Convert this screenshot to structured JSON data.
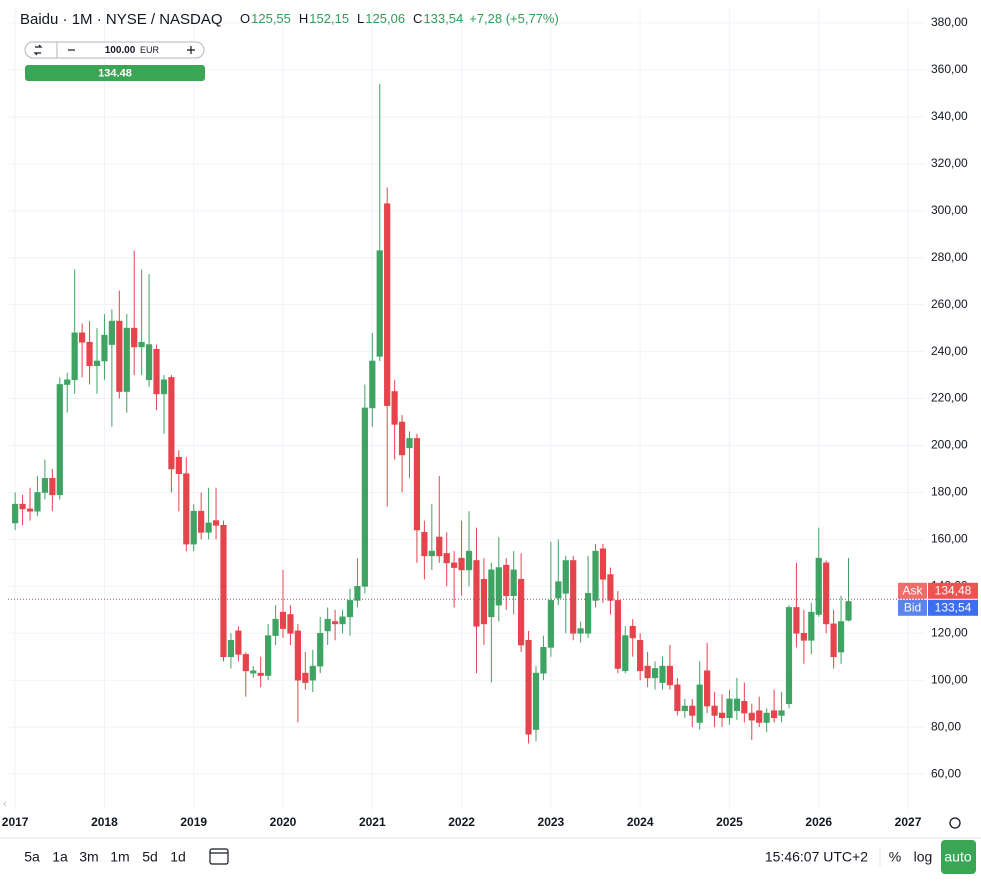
{
  "chart_data": {
    "type": "candlestick",
    "title": "Baidu · 1M · NYSE / NASDAQ",
    "last_labels": [
      {
        "key": "O",
        "label": "125,55"
      },
      {
        "key": "H",
        "label": "152,15"
      },
      {
        "key": "L",
        "label": "125,06"
      },
      {
        "key": "C",
        "label": "133,54"
      }
    ],
    "change_label": "+7,28 (+5,77%)",
    "up_color": "#3fa463",
    "down_color": "#e5444c",
    "x": [
      "2017-01",
      "2017-02",
      "2017-03",
      "2017-04",
      "2017-05",
      "2017-06",
      "2017-07",
      "2017-08",
      "2017-09",
      "2017-10",
      "2017-11",
      "2017-12",
      "2018-01",
      "2018-02",
      "2018-03",
      "2018-04",
      "2018-05",
      "2018-06",
      "2018-07",
      "2018-08",
      "2018-09",
      "2018-10",
      "2018-11",
      "2018-12",
      "2019-01",
      "2019-02",
      "2019-03",
      "2019-04",
      "2019-05",
      "2019-06",
      "2019-07",
      "2019-08",
      "2019-09",
      "2019-10",
      "2019-11",
      "2019-12",
      "2020-01",
      "2020-02",
      "2020-03",
      "2020-04",
      "2020-05",
      "2020-06",
      "2020-07",
      "2020-08",
      "2020-09",
      "2020-10",
      "2020-11",
      "2020-12",
      "2021-01",
      "2021-02",
      "2021-03",
      "2021-04",
      "2021-05",
      "2021-06",
      "2021-07",
      "2021-08",
      "2021-09",
      "2021-10",
      "2021-11",
      "2021-12",
      "2022-01",
      "2022-02",
      "2022-03",
      "2022-04",
      "2022-05",
      "2022-06",
      "2022-07",
      "2022-08",
      "2022-09",
      "2022-10",
      "2022-11",
      "2022-12",
      "2023-01",
      "2023-02",
      "2023-03",
      "2023-04",
      "2023-05",
      "2023-06",
      "2023-07",
      "2023-08",
      "2023-09",
      "2023-10",
      "2023-11",
      "2023-12",
      "2024-01",
      "2024-02",
      "2024-03",
      "2024-04",
      "2024-05",
      "2024-06",
      "2024-07",
      "2024-08",
      "2024-09",
      "2024-10",
      "2024-11",
      "2024-12",
      "2025-01",
      "2025-02",
      "2025-03",
      "2025-04",
      "2025-05",
      "2025-06",
      "2025-07",
      "2025-08",
      "2025-09",
      "2025-10",
      "2025-11",
      "2025-12",
      "2026-01",
      "2026-02",
      "2026-03",
      "2026-04",
      "2026-05"
    ],
    "open": [
      167,
      175,
      173,
      172,
      180,
      186,
      179,
      226,
      228,
      248,
      244,
      234,
      236,
      243,
      253,
      223,
      250,
      242,
      228,
      241,
      222,
      229,
      195,
      188,
      158,
      172,
      163,
      168,
      166,
      110,
      121,
      111,
      103,
      103,
      102,
      119,
      129,
      128,
      121,
      103,
      100,
      106,
      121,
      125,
      124,
      127,
      134,
      140,
      216,
      238,
      303,
      223,
      210,
      199,
      203,
      163,
      153,
      161,
      154,
      150,
      152,
      147,
      151,
      143,
      127,
      132,
      149,
      136,
      143,
      117,
      79,
      103,
      114,
      135,
      137,
      151,
      120,
      120,
      134,
      156,
      145,
      134,
      104,
      123,
      117,
      106,
      101,
      99,
      106,
      98,
      87,
      89,
      82,
      104,
      89,
      86,
      84,
      87,
      91,
      86,
      87,
      82,
      87,
      85,
      90,
      131,
      120,
      117,
      128,
      150,
      124,
      112,
      125.55
    ],
    "high": [
      180,
      179,
      182,
      187,
      194,
      190,
      229,
      231,
      275,
      252,
      253,
      250,
      256,
      258,
      266,
      256,
      283,
      275,
      273,
      243,
      230,
      230,
      198,
      195,
      175,
      180,
      182,
      182,
      168,
      120,
      123,
      112,
      106,
      110,
      124,
      132,
      147,
      132,
      124,
      112,
      113,
      127,
      131,
      130,
      130,
      139,
      152,
      226,
      248,
      354,
      310,
      228,
      213,
      206,
      205,
      168,
      175,
      187,
      163,
      155,
      168,
      172,
      165,
      152,
      150,
      161,
      152,
      155,
      154,
      121,
      106,
      119,
      159,
      160,
      153,
      153,
      125,
      153,
      158,
      158,
      148,
      138,
      123,
      126,
      120,
      112,
      108,
      110,
      115,
      101,
      92,
      92,
      108,
      116,
      95,
      94,
      96,
      101,
      99,
      90,
      93,
      88,
      96,
      95,
      132,
      150,
      130,
      133,
      165,
      151,
      130,
      136,
      152.15
    ],
    "low": [
      164,
      166,
      168,
      170,
      177,
      172,
      177,
      214,
      222,
      229,
      226,
      222,
      228,
      208,
      220,
      214,
      230,
      230,
      225,
      215,
      205,
      180,
      172,
      155,
      155,
      160,
      160,
      160,
      108,
      105,
      108,
      93,
      101,
      97,
      100,
      115,
      118,
      115,
      82,
      96,
      95,
      103,
      115,
      117,
      120,
      119,
      131,
      137,
      208,
      236,
      174,
      194,
      180,
      186,
      150,
      143,
      147,
      150,
      140,
      131,
      136,
      140,
      103,
      115,
      99,
      125,
      130,
      128,
      112,
      73,
      74,
      100,
      110,
      132,
      120,
      117,
      116,
      118,
      131,
      133,
      128,
      103,
      103,
      110,
      100,
      97,
      96,
      96,
      96,
      85,
      84,
      80,
      79,
      86,
      80,
      80,
      81,
      83,
      82,
      74.5,
      80,
      78,
      82,
      82,
      88,
      114,
      107,
      111,
      127,
      120,
      105,
      107,
      125.06
    ],
    "close": [
      175,
      173,
      172,
      180,
      186,
      179,
      226,
      228,
      248,
      244,
      234,
      236,
      247,
      253,
      223,
      250,
      242,
      244,
      243,
      222,
      228,
      190,
      188,
      158,
      172,
      163,
      167,
      166,
      110,
      117,
      111,
      104,
      104,
      102,
      119,
      126,
      122,
      120,
      100,
      99,
      106,
      120,
      126,
      124,
      127,
      134,
      140,
      216,
      236,
      283,
      217,
      209,
      196,
      203,
      164,
      153,
      155,
      153,
      150,
      148,
      147,
      155,
      123,
      124,
      147,
      148,
      136,
      147,
      115,
      77,
      103,
      114,
      134,
      142,
      151,
      120,
      122,
      137,
      155,
      143,
      134,
      105,
      119,
      118,
      104,
      101,
      105,
      106,
      98,
      87,
      89,
      85,
      98,
      89,
      85,
      84,
      92,
      92,
      86,
      83,
      82,
      86,
      84,
      87,
      131,
      120,
      117,
      129,
      152,
      124,
      110,
      125,
      133.54
    ],
    "xlim": [
      2016.92,
      2027.19
    ],
    "xticks": [
      2017,
      2018,
      2019,
      2020,
      2021,
      2022,
      2023,
      2024,
      2025,
      2026,
      2027
    ],
    "ylim": [
      44.7,
      386.4
    ],
    "yticks": [
      {
        "value": 60,
        "label": "60,00"
      },
      {
        "value": 80,
        "label": "80,00"
      },
      {
        "value": 100,
        "label": "100,00"
      },
      {
        "value": 120,
        "label": "120,00"
      },
      {
        "value": 140,
        "label": "140,00"
      },
      {
        "value": 160,
        "label": "160,00"
      },
      {
        "value": 180,
        "label": "180,00"
      },
      {
        "value": 200,
        "label": "200,00"
      },
      {
        "value": 220,
        "label": "220,00"
      },
      {
        "value": 240,
        "label": "240,00"
      },
      {
        "value": 260,
        "label": "260,00"
      },
      {
        "value": 280,
        "label": "280,00"
      },
      {
        "value": 300,
        "label": "300,00"
      },
      {
        "value": 320,
        "label": "320,00"
      },
      {
        "value": 340,
        "label": "340,00"
      },
      {
        "value": 360,
        "label": "360,00"
      },
      {
        "value": 380,
        "label": "380,00"
      }
    ],
    "grid": true,
    "ask": {
      "name": "Ask",
      "value": 134.48,
      "label": "134,48",
      "color": "#ef5350"
    },
    "bid": {
      "name": "Bid",
      "value": 133.54,
      "label": "133,54",
      "color": "#3d6ef0"
    }
  },
  "trade_widget": {
    "quantity": "100.00",
    "currency": "EUR",
    "price": "134.48"
  },
  "toolbar": {
    "timeframes": [
      "5a",
      "1a",
      "3m",
      "1m",
      "5d",
      "1d"
    ],
    "clock": "15:46:07 UTC+2",
    "scale_buttons": [
      "%",
      "log",
      "auto"
    ]
  }
}
